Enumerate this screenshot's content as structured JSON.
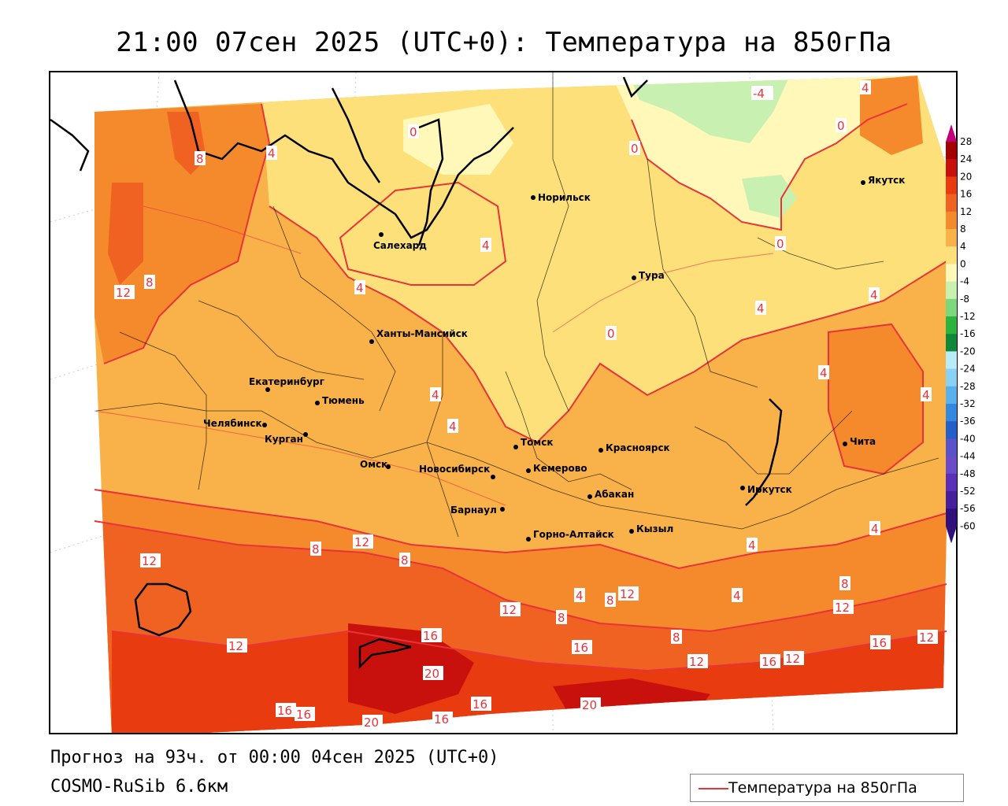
{
  "title": "21:00 07сен 2025 (UTC+0): Температура на 850гПа",
  "forecast_text": "Прогноз на 93ч. от 00:00 04сен 2025 (UTC+0)",
  "model_text": "COSMO-RuSib 6.6км",
  "legend_label": "Температура на 850гПа",
  "colors": {
    "isotherm_line": "#e8333a",
    "label_text": "#e8333a"
  },
  "colorbar": {
    "levels": [
      {
        "value": "28",
        "color": "#c0007a"
      },
      {
        "value": "24",
        "color": "#a50000"
      },
      {
        "value": "20",
        "color": "#c8110c"
      },
      {
        "value": "16",
        "color": "#e83b10"
      },
      {
        "value": "12",
        "color": "#f06222"
      },
      {
        "value": "8",
        "color": "#f58a2c"
      },
      {
        "value": "4",
        "color": "#f9b24a"
      },
      {
        "value": "0",
        "color": "#fde07a"
      },
      {
        "value": "-4",
        "color": "#fff8b8"
      },
      {
        "value": "-8",
        "color": "#c8f0b0"
      },
      {
        "value": "-12",
        "color": "#7cd87c"
      },
      {
        "value": "-16",
        "color": "#2cb43c"
      },
      {
        "value": "-20",
        "color": "#10883a"
      },
      {
        "value": "-24",
        "color": "#b8ecf8"
      },
      {
        "value": "-28",
        "color": "#88d0f4"
      },
      {
        "value": "-32",
        "color": "#58b0ec"
      },
      {
        "value": "-36",
        "color": "#3488e0"
      },
      {
        "value": "-40",
        "color": "#2460cc"
      },
      {
        "value": "-44",
        "color": "#5a52c8"
      },
      {
        "value": "-48",
        "color": "#6a4cc8"
      },
      {
        "value": "-52",
        "color": "#5a30b8"
      },
      {
        "value": "-56",
        "color": "#44209c"
      },
      {
        "value": "-60",
        "color": "#30107c"
      }
    ]
  },
  "cities": [
    {
      "name": "Норильск"
    },
    {
      "name": "Якутск"
    },
    {
      "name": "Салехард"
    },
    {
      "name": "Тура"
    },
    {
      "name": "Ханты-Мансийск"
    },
    {
      "name": "Екатеринбург"
    },
    {
      "name": "Тюмень"
    },
    {
      "name": "Челябинск"
    },
    {
      "name": "Курган"
    },
    {
      "name": "Омск"
    },
    {
      "name": "Томск"
    },
    {
      "name": "Красноярск"
    },
    {
      "name": "Новосибирск"
    },
    {
      "name": "Кемерово"
    },
    {
      "name": "Чита"
    },
    {
      "name": "Иркутск"
    },
    {
      "name": "Абакан"
    },
    {
      "name": "Барнаул"
    },
    {
      "name": "Горно-Алтайск"
    },
    {
      "name": "Кызыл"
    }
  ],
  "isotherm_labels": [
    "-4",
    "0",
    "4",
    "8",
    "12",
    "16",
    "20"
  ]
}
